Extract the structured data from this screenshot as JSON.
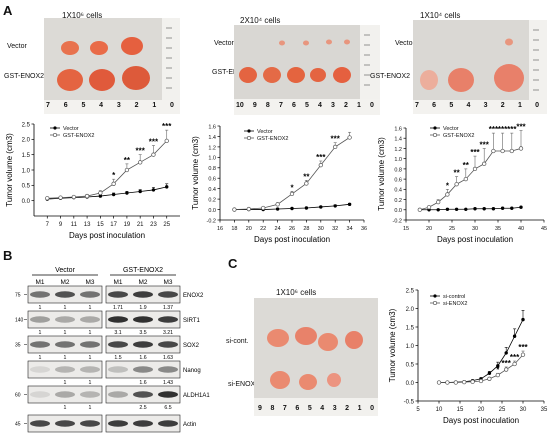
{
  "panelA": {
    "letter": "A",
    "groups": [
      {
        "cells": "1X10⁶ cells"
      },
      {
        "cells": "2X10⁴ cells"
      },
      {
        "cells": "1X10⁴ cells"
      }
    ],
    "row_labels": [
      "Vector",
      "GST-ENOX2"
    ],
    "ruler_marks_1": [
      "7",
      "6",
      "5",
      "4",
      "3",
      "2",
      "1",
      "0"
    ],
    "ruler_marks_2": [
      "10",
      "9",
      "8",
      "7",
      "6",
      "5",
      "4",
      "3",
      "2",
      "1",
      "0"
    ],
    "ruler_marks_3": [
      "7",
      "6",
      "5",
      "4",
      "3",
      "2",
      "1",
      "0"
    ]
  },
  "panelB": {
    "letter": "B",
    "vector_label": "Vector",
    "enox_label": "GST-ENOX2",
    "lanes": [
      "M1",
      "M2",
      "M3",
      "M1",
      "M2",
      "M3"
    ],
    "bands": [
      {
        "name": "ENOX2",
        "mw": "75",
        "quant": [
          "1",
          "1",
          "1",
          "1.71",
          "1.9",
          "1.37"
        ]
      },
      {
        "name": "SIRT1",
        "mw": "140",
        "quant": [
          "1",
          "1",
          "1",
          "3.1",
          "3.5",
          "3.21"
        ]
      },
      {
        "name": "SOX2",
        "mw": "35",
        "quant": [
          "1",
          "1",
          "1",
          "1.5",
          "1.6",
          "1.63"
        ]
      },
      {
        "name": "Nanog",
        "mw": "",
        "quant": [
          "",
          "1",
          "1",
          "",
          "1.6",
          "1.43"
        ]
      },
      {
        "name": "ALDH1A1",
        "mw": "60",
        "quant": [
          "",
          "1",
          "1",
          "",
          "2.5",
          "6.5"
        ]
      },
      {
        "name": "Actin",
        "mw": "45",
        "quant": [
          "",
          "",
          "",
          "",
          "",
          ""
        ]
      }
    ]
  },
  "panelC": {
    "letter": "C",
    "cells": "1X10⁶ cells",
    "row_labels": [
      "si-cont.",
      "si-ENOX2"
    ],
    "ruler_marks": [
      "9",
      "8",
      "7",
      "6",
      "5",
      "4",
      "3",
      "2",
      "1",
      "0"
    ]
  },
  "chart_data": [
    {
      "type": "line",
      "xlabel": "Days post inoculation",
      "ylabel": "Tumor volume (cm3)",
      "xlim": [
        5,
        27
      ],
      "ylim": [
        -0.5,
        2.5
      ],
      "xticks": [
        7,
        9,
        11,
        13,
        15,
        17,
        19,
        21,
        23,
        25
      ],
      "yticks": [
        0.0,
        0.5,
        1.0,
        1.5,
        2.0,
        2.5
      ],
      "ytick_labels": [
        "0.0",
        "0.5",
        "1.0",
        "1.5",
        "2.0",
        "2.5"
      ],
      "legend": [
        "Vector",
        "GST-ENOX2"
      ],
      "legend_position": "top-left",
      "x": [
        7,
        9,
        11,
        13,
        15,
        17,
        19,
        21,
        23,
        25
      ],
      "series": [
        {
          "name": "Vector",
          "marker": "filled",
          "values": [
            0.05,
            0.08,
            0.1,
            0.12,
            0.15,
            0.2,
            0.25,
            0.3,
            0.35,
            0.45
          ],
          "err": [
            0.02,
            0.02,
            0.03,
            0.03,
            0.04,
            0.05,
            0.05,
            0.06,
            0.08,
            0.1
          ]
        },
        {
          "name": "GST-ENOX2",
          "marker": "open",
          "values": [
            0.08,
            0.1,
            0.12,
            0.15,
            0.25,
            0.55,
            1.0,
            1.25,
            1.5,
            1.95
          ],
          "err": [
            0.02,
            0.03,
            0.03,
            0.05,
            0.08,
            0.15,
            0.2,
            0.25,
            0.3,
            0.35
          ]
        }
      ],
      "annotations": [
        {
          "x": 17,
          "text": "*"
        },
        {
          "x": 19,
          "text": "**"
        },
        {
          "x": 21,
          "text": "***"
        },
        {
          "x": 23,
          "text": "***"
        },
        {
          "x": 25,
          "text": "***"
        }
      ]
    },
    {
      "type": "line",
      "xlabel": "Days post inoculation",
      "ylabel": "Tumor volume (cm3)",
      "xlim": [
        16,
        36
      ],
      "ylim": [
        -0.2,
        1.6
      ],
      "xticks": [
        16,
        18,
        20,
        22,
        24,
        26,
        28,
        30,
        32,
        34,
        36
      ],
      "yticks": [
        -0.2,
        0.0,
        0.2,
        0.4,
        0.6,
        0.8,
        1.0,
        1.2,
        1.4,
        1.6
      ],
      "ytick_labels": [
        "-0.2",
        "0.0",
        "0.2",
        "0.4",
        "0.6",
        "0.8",
        "1.0",
        "1.2",
        "1.4",
        "1.6"
      ],
      "legend": [
        "Vector",
        "GST-ENOX2"
      ],
      "legend_position": "top-left",
      "x": [
        18,
        20,
        22,
        24,
        26,
        28,
        30,
        32,
        34
      ],
      "series": [
        {
          "name": "Vector",
          "marker": "filled",
          "values": [
            0.0,
            0.0,
            0.0,
            0.01,
            0.02,
            0.03,
            0.05,
            0.07,
            0.1
          ],
          "err": [
            0,
            0,
            0,
            0.01,
            0.01,
            0.01,
            0.01,
            0.02,
            0.02
          ]
        },
        {
          "name": "GST-ENOX2",
          "marker": "open",
          "values": [
            0.0,
            0.01,
            0.03,
            0.1,
            0.3,
            0.5,
            0.85,
            1.2,
            1.38
          ],
          "err": [
            0,
            0.01,
            0.01,
            0.03,
            0.05,
            0.06,
            0.08,
            0.08,
            0.1
          ]
        }
      ],
      "annotations": [
        {
          "x": 26,
          "text": "*"
        },
        {
          "x": 28,
          "text": "**"
        },
        {
          "x": 30,
          "text": "***"
        },
        {
          "x": 32,
          "text": "***"
        }
      ]
    },
    {
      "type": "line",
      "xlabel": "Days post inoculation",
      "ylabel": "Tumor volume (cm3)",
      "xlim": [
        15,
        45
      ],
      "ylim": [
        -0.2,
        1.6
      ],
      "xticks": [
        15,
        20,
        25,
        30,
        35,
        40,
        45
      ],
      "yticks": [
        -0.2,
        0.0,
        0.2,
        0.4,
        0.6,
        0.8,
        1.0,
        1.2,
        1.4,
        1.6
      ],
      "ytick_labels": [
        "-0.2",
        "0.0",
        "0.2",
        "0.4",
        "0.6",
        "0.8",
        "1.0",
        "1.2",
        "1.4",
        "1.6"
      ],
      "legend": [
        "Vector",
        "GST-ENOX2"
      ],
      "legend_position": "top-left",
      "x": [
        18,
        20,
        22,
        24,
        26,
        28,
        30,
        32,
        34,
        36,
        38,
        40
      ],
      "series": [
        {
          "name": "Vector",
          "marker": "filled",
          "values": [
            0.0,
            0.0,
            0.0,
            0.01,
            0.01,
            0.01,
            0.02,
            0.02,
            0.02,
            0.03,
            0.03,
            0.05
          ],
          "err": [
            0,
            0,
            0,
            0,
            0,
            0,
            0.01,
            0.01,
            0.01,
            0.01,
            0.01,
            0.01
          ]
        },
        {
          "name": "GST-ENOX2",
          "marker": "open",
          "values": [
            0.0,
            0.05,
            0.15,
            0.3,
            0.5,
            0.6,
            0.8,
            0.9,
            1.15,
            1.15,
            1.15,
            1.2
          ],
          "err": [
            0,
            0.02,
            0.05,
            0.1,
            0.15,
            0.2,
            0.25,
            0.3,
            0.35,
            0.35,
            0.35,
            0.35
          ]
        }
      ],
      "annotations": [
        {
          "x": 24,
          "text": "*"
        },
        {
          "x": 26,
          "text": "**"
        },
        {
          "x": 28,
          "text": "**"
        },
        {
          "x": 30,
          "text": "***"
        },
        {
          "x": 32,
          "text": "***"
        },
        {
          "x": 34,
          "text": "***"
        },
        {
          "x": 36,
          "text": "***"
        },
        {
          "x": 38,
          "text": "***"
        },
        {
          "x": 40,
          "text": "***"
        }
      ]
    },
    {
      "type": "line",
      "xlabel": "Days post inoculation",
      "ylabel": "Tumor volume (cm3)",
      "xlim": [
        5,
        35
      ],
      "ylim": [
        -0.5,
        2.5
      ],
      "xticks": [
        5,
        10,
        15,
        20,
        25,
        30,
        35
      ],
      "yticks": [
        -0.5,
        0.0,
        0.5,
        1.0,
        1.5,
        2.0,
        2.5
      ],
      "ytick_labels": [
        "-0.5",
        "0.0",
        "0.5",
        "1.0",
        "1.5",
        "2.0",
        "2.5"
      ],
      "legend": [
        "si-control",
        "si-ENOX2"
      ],
      "legend_position": "top-left",
      "x": [
        10,
        12,
        14,
        16,
        18,
        20,
        22,
        24,
        26,
        28,
        30
      ],
      "series": [
        {
          "name": "si-control",
          "marker": "filled",
          "values": [
            0.0,
            0.0,
            0.01,
            0.02,
            0.05,
            0.1,
            0.25,
            0.45,
            0.8,
            1.25,
            1.7
          ],
          "err": [
            0,
            0,
            0,
            0.01,
            0.02,
            0.03,
            0.05,
            0.1,
            0.15,
            0.2,
            0.25
          ]
        },
        {
          "name": "si-ENOX2",
          "marker": "open",
          "values": [
            0.0,
            0.0,
            0.0,
            0.01,
            0.02,
            0.04,
            0.1,
            0.2,
            0.35,
            0.5,
            0.75
          ],
          "err": [
            0,
            0,
            0,
            0,
            0.01,
            0.02,
            0.03,
            0.05,
            0.07,
            0.08,
            0.1
          ]
        }
      ],
      "annotations": [
        {
          "x": 24,
          "text": "*"
        },
        {
          "x": 26,
          "text": "***"
        },
        {
          "x": 28,
          "text": "***"
        },
        {
          "x": 30,
          "text": "***"
        }
      ]
    }
  ]
}
